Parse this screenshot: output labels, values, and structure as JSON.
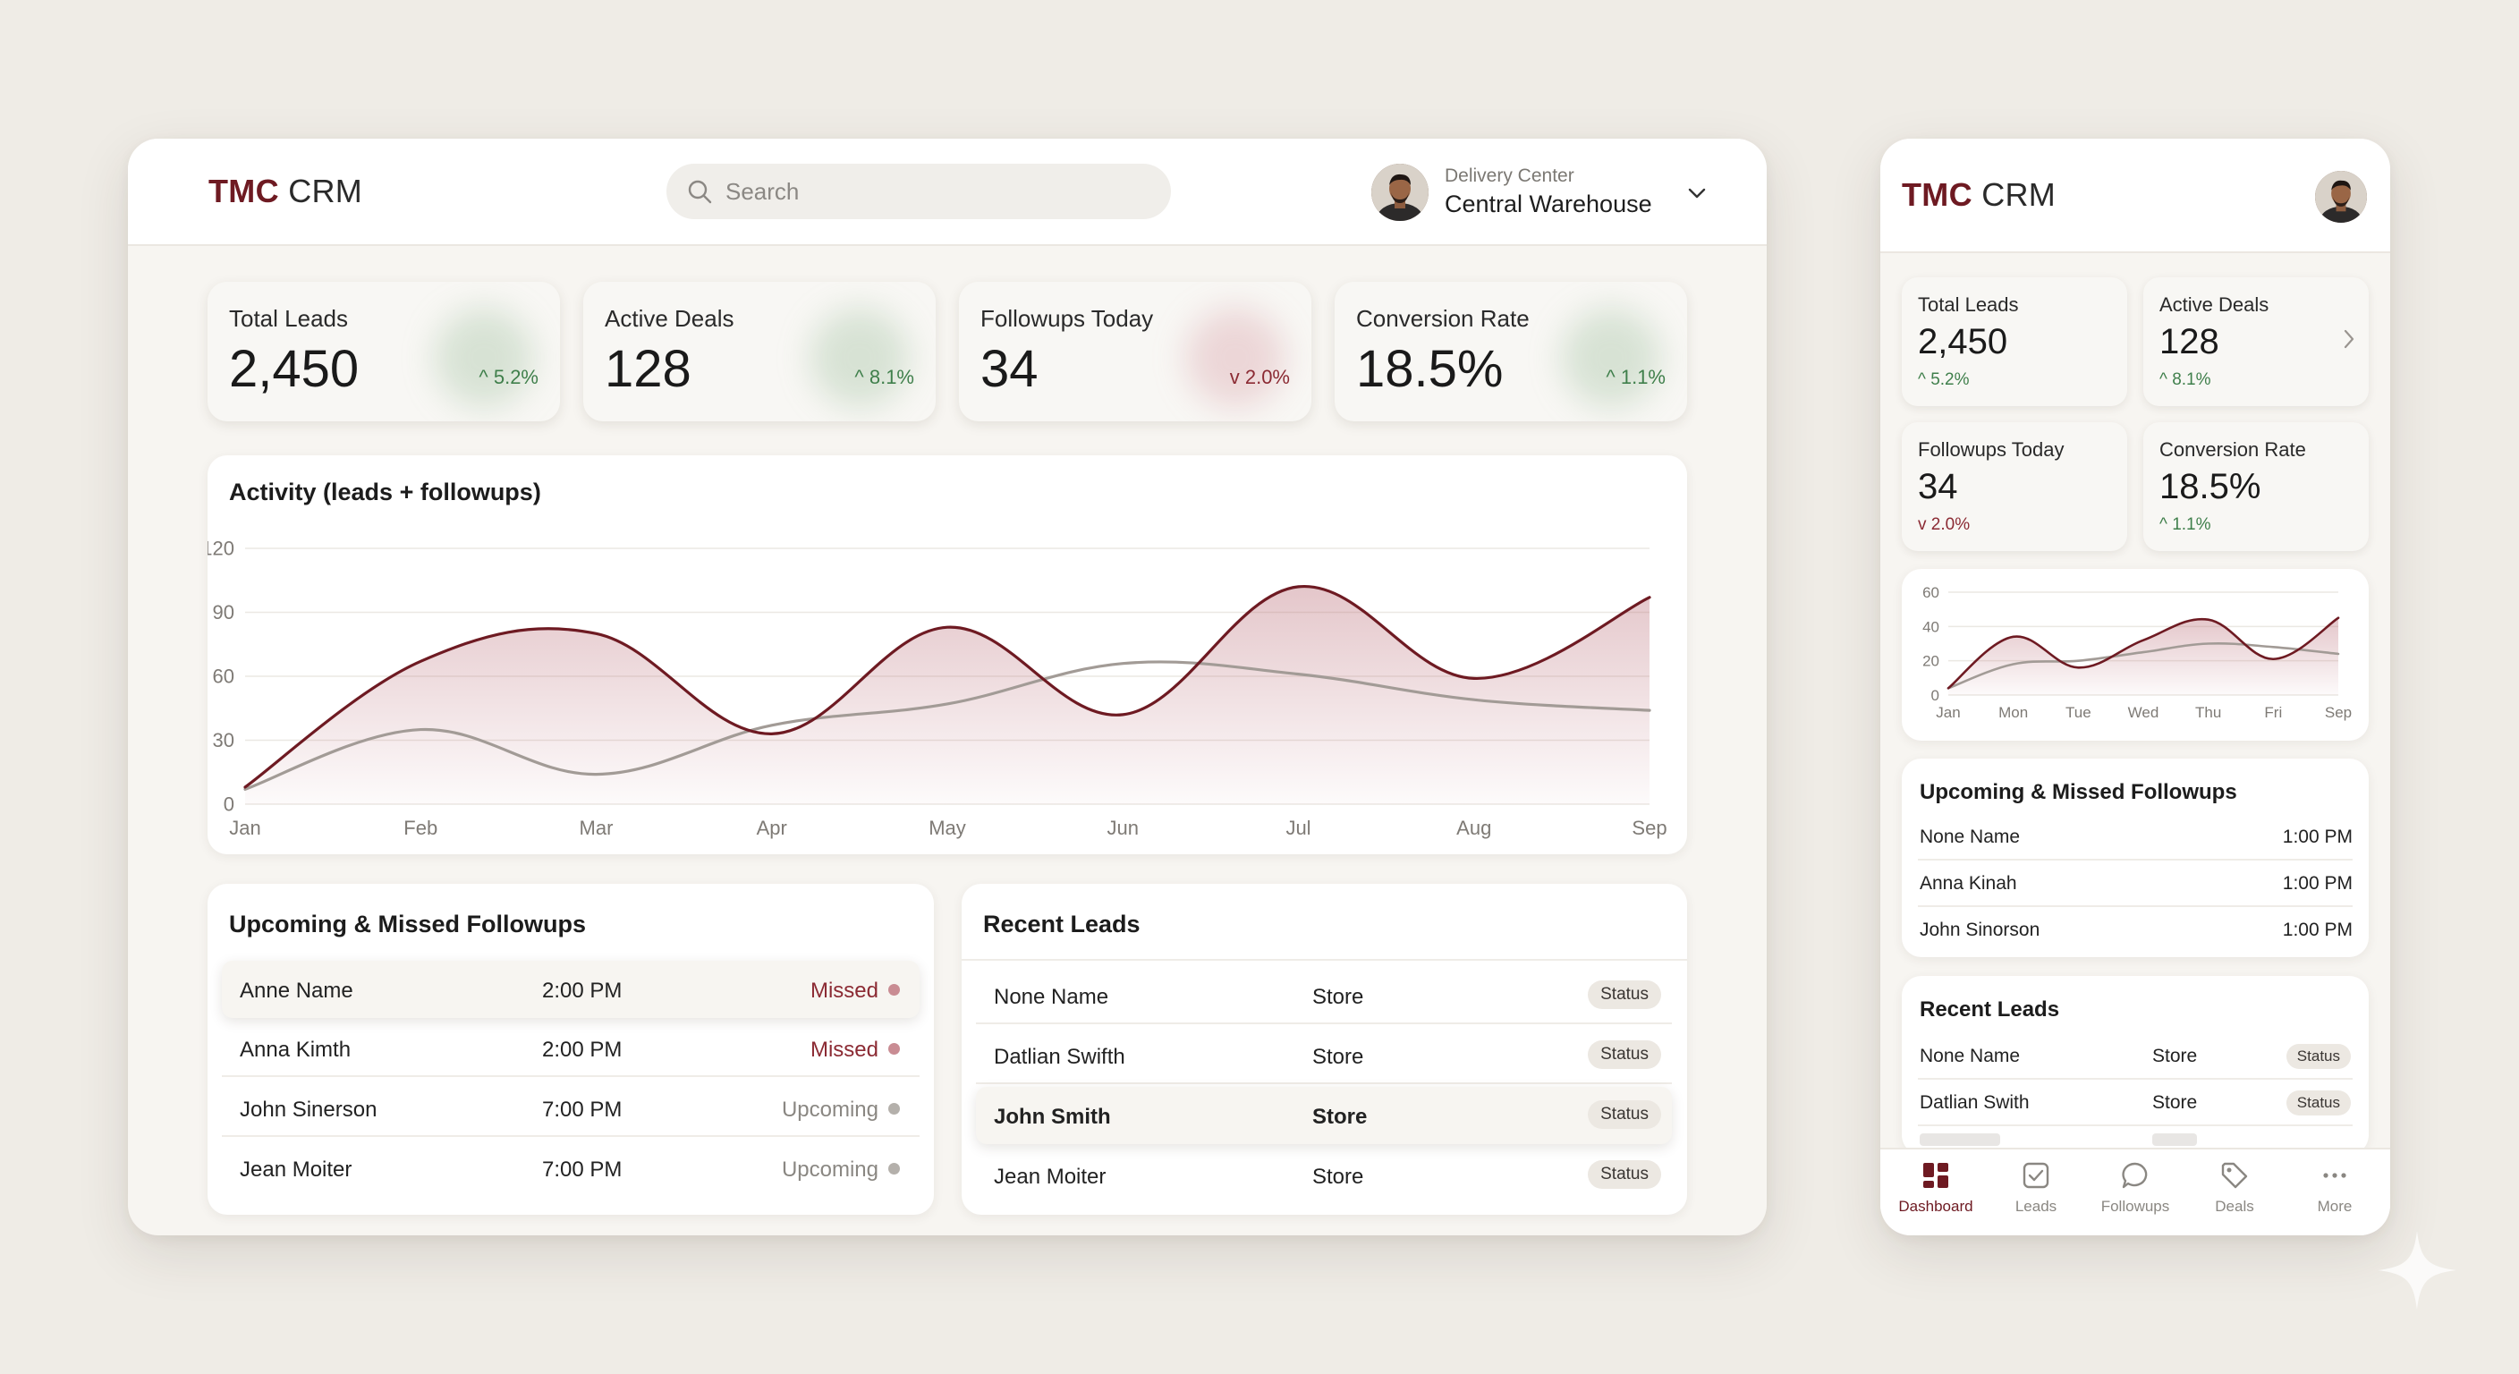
{
  "desktop": {
    "logo": {
      "bold": "TMC",
      "rest": "CRM"
    },
    "search": {
      "placeholder": "Search",
      "icon": "search-icon"
    },
    "user": {
      "label": "Delivery Center",
      "name": "Central Warehouse"
    },
    "stats": [
      {
        "title": "Total Leads",
        "value": "2,450",
        "delta": "5.2%",
        "trend": "up"
      },
      {
        "title": "Active Deals",
        "value": "128",
        "delta": "8.1%",
        "trend": "up"
      },
      {
        "title": "Followups Today",
        "value": "34",
        "delta": "2.0%",
        "trend": "down"
      },
      {
        "title": "Conversion Rate",
        "value": "18.5%",
        "delta": "1.1%",
        "trend": "up"
      }
    ],
    "activity_title": "Activity (leads + followups)",
    "followups": {
      "title": "Upcoming & Missed Followups",
      "rows": [
        {
          "name": "Anne Name",
          "time": "2:00 PM",
          "status": "Missed"
        },
        {
          "name": "Anna Kimth",
          "time": "2:00 PM",
          "status": "Missed"
        },
        {
          "name": "John Sinerson",
          "time": "7:00 PM",
          "status": "Upcoming"
        },
        {
          "name": "Jean Moiter",
          "time": "7:00 PM",
          "status": "Upcoming"
        }
      ]
    },
    "leads": {
      "title": "Recent Leads",
      "rows": [
        {
          "name": "None Name",
          "source": "Store",
          "badge": "Status"
        },
        {
          "name": "Datlian Swifth",
          "source": "Store",
          "badge": "Status"
        },
        {
          "name": "John Smith",
          "source": "Store",
          "badge": "Status"
        },
        {
          "name": "Jean Moiter",
          "source": "Store",
          "badge": "Status"
        }
      ]
    }
  },
  "mobile": {
    "logo": {
      "bold": "TMC",
      "rest": "CRM"
    },
    "stats": [
      {
        "title": "Total Leads",
        "value": "2,450",
        "delta": "5.2%",
        "trend": "up"
      },
      {
        "title": "Active Deals",
        "value": "128",
        "delta": "8.1%",
        "trend": "up"
      },
      {
        "title": "Followups Today",
        "value": "34",
        "delta": "2.0%",
        "trend": "down"
      },
      {
        "title": "Conversion Rate",
        "value": "18.5%",
        "delta": "1.1%",
        "trend": "up"
      }
    ],
    "followups": {
      "title": "Upcoming & Missed Followups",
      "rows": [
        {
          "name": "None Name",
          "time": "1:00 PM"
        },
        {
          "name": "Anna Kinah",
          "time": "1:00 PM"
        },
        {
          "name": "John Sinorson",
          "time": "1:00 PM"
        }
      ]
    },
    "leads": {
      "title": "Recent Leads",
      "rows": [
        {
          "name": "None Name",
          "source": "Store",
          "badge": "Status"
        },
        {
          "name": "Datlian Swith",
          "source": "Store",
          "badge": "Status"
        }
      ]
    },
    "tabs": [
      {
        "label": "Dashboard",
        "icon": "dashboard-icon",
        "active": true
      },
      {
        "label": "Leads",
        "icon": "check-square-icon",
        "active": false
      },
      {
        "label": "Followups",
        "icon": "chat-bubble-icon",
        "active": false
      },
      {
        "label": "Deals",
        "icon": "tag-icon",
        "active": false
      },
      {
        "label": "More",
        "icon": "more-dots-icon",
        "active": false
      }
    ]
  },
  "colors": {
    "brand": "#6e1a22",
    "series_primary": "#6e1a22",
    "series_secondary": "#a29b96",
    "up": "#3f7f4b",
    "down": "#8b2a33"
  },
  "chart_data": [
    {
      "type": "area",
      "title": "Activity (leads + followups)",
      "categories": [
        "Jan",
        "Feb",
        "Mar",
        "Apr",
        "May",
        "Jun",
        "Jul",
        "Aug",
        "Sep"
      ],
      "ylim": [
        0,
        120
      ],
      "yticks": [
        0,
        30,
        60,
        90,
        120
      ],
      "grid": true,
      "series": [
        {
          "values": [
            8,
            67,
            80,
            33,
            83,
            42,
            102,
            59,
            97
          ]
        },
        {
          "values": [
            7,
            35,
            14,
            37,
            47,
            66,
            61,
            49,
            44
          ]
        }
      ]
    },
    {
      "type": "area",
      "categories": [
        "Jan",
        "Mon",
        "Tue",
        "Wed",
        "Thu",
        "Fri",
        "Sep"
      ],
      "ylim": [
        0,
        60
      ],
      "yticks": [
        0,
        20,
        40,
        60
      ],
      "grid": true,
      "series": [
        {
          "values": [
            4,
            34,
            16,
            32,
            44,
            21,
            45
          ]
        },
        {
          "values": [
            4,
            18,
            20,
            25,
            30,
            28,
            24
          ]
        }
      ]
    }
  ]
}
